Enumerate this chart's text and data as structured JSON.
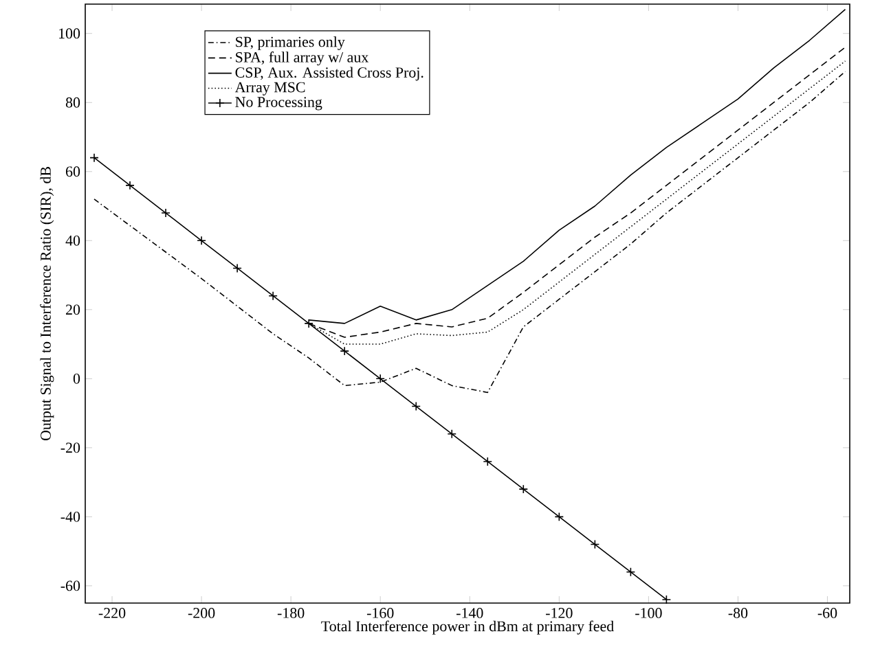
{
  "chart_data": {
    "type": "line",
    "xlabel": "Total Interference power in dBm at primary feed",
    "ylabel": "Output Signal to Interference Ratio (SIR), dB",
    "xlim": [
      -226,
      -55
    ],
    "ylim": [
      -65,
      108.5
    ],
    "xticks": [
      -220,
      -200,
      -180,
      -160,
      -140,
      -120,
      -100,
      -80,
      -60
    ],
    "yticks": [
      -60,
      -40,
      -20,
      0,
      20,
      40,
      60,
      80,
      100
    ],
    "grid": false,
    "legend": "top left",
    "series": [
      {
        "name": "SP, primaries only",
        "color": "#000000",
        "line_style": "dashdot",
        "marker": "none",
        "x": [
          -224,
          -200,
          -184,
          -176,
          -168,
          -160,
          -152,
          -144,
          -136,
          -128,
          -120,
          -112,
          -104,
          -96,
          -88,
          -80,
          -72,
          -64,
          -56
        ],
        "values": [
          52,
          29,
          13,
          6,
          -2,
          -1,
          3,
          -2,
          -4,
          15,
          23,
          31,
          39,
          48,
          56,
          64,
          72,
          80,
          89
        ]
      },
      {
        "name": "SPA, full array w/ aux",
        "color": "#000000",
        "line_style": "dashed",
        "marker": "none",
        "x": [
          -176,
          -168,
          -160,
          -152,
          -144,
          -136,
          -128,
          -120,
          -112,
          -104,
          -96,
          -88,
          -80,
          -72,
          -64,
          -56
        ],
        "values": [
          16,
          12,
          13.5,
          16,
          15,
          17.5,
          25,
          33,
          41,
          48,
          56,
          64,
          72,
          80,
          88,
          96
        ]
      },
      {
        "name": "CSP, Aux. Assisted Cross Proj.",
        "color": "#000000",
        "line_style": "solid",
        "marker": "none",
        "x": [
          -176,
          -168,
          -160,
          -152,
          -144,
          -136,
          -128,
          -120,
          -112,
          -104,
          -96,
          -88,
          -80,
          -72,
          -64,
          -56
        ],
        "values": [
          17,
          16,
          21,
          17,
          20,
          27,
          34,
          43,
          50,
          59,
          67,
          74,
          81,
          90,
          98,
          107
        ]
      },
      {
        "name": "Array MSC",
        "color": "#000000",
        "line_style": "dotted",
        "marker": "none",
        "x": [
          -176,
          -168,
          -160,
          -152,
          -144,
          -136,
          -128,
          -120,
          -112,
          -104,
          -96,
          -88,
          -80,
          -72,
          -64,
          -56
        ],
        "values": [
          16,
          10,
          10,
          13,
          12.5,
          13.5,
          20,
          28,
          36,
          44,
          52,
          60,
          68,
          76,
          84,
          92
        ]
      },
      {
        "name": "No Processing",
        "color": "#000000",
        "line_style": "solid",
        "marker": "cross",
        "x": [
          -224,
          -216,
          -208,
          -200,
          -192,
          -184,
          -176,
          -168,
          -160,
          -152,
          -144,
          -136,
          -128,
          -120,
          -112,
          -104,
          -96
        ],
        "values": [
          64,
          56,
          48,
          40,
          32,
          24,
          16,
          8,
          0,
          -8,
          -16,
          -24,
          -32,
          -40,
          -48,
          -56,
          -64
        ]
      }
    ]
  }
}
